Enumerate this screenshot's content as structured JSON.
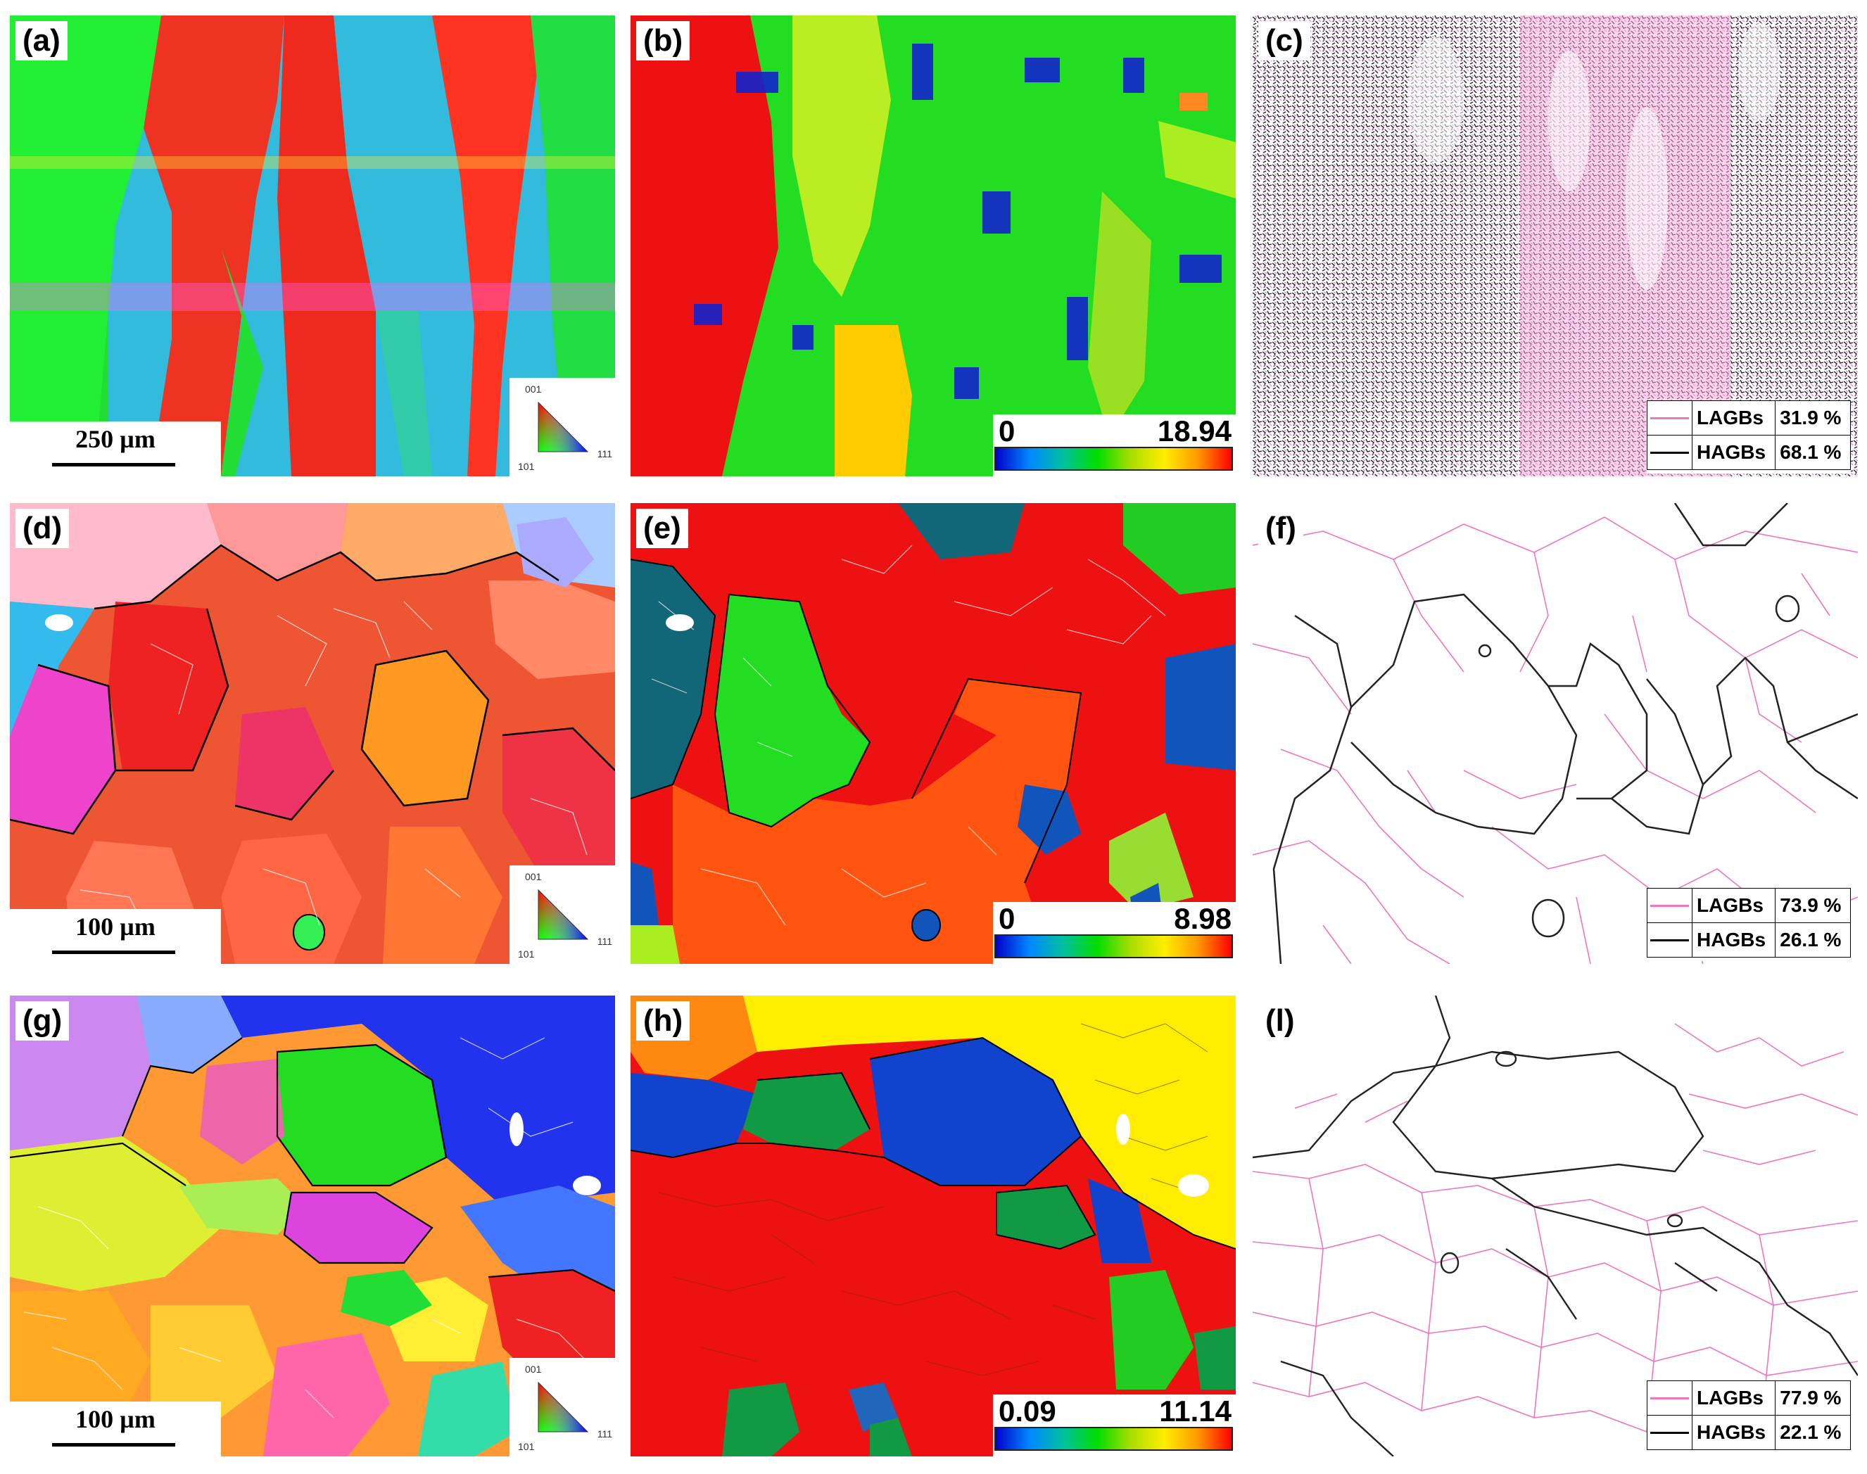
{
  "figure": {
    "panels": [
      {
        "id": "a",
        "label": "(a)",
        "type": "ipf",
        "scale_bar": "250 µm"
      },
      {
        "id": "b",
        "label": "(b)",
        "type": "kam",
        "colorbar": {
          "min": "0",
          "max": "18.94"
        }
      },
      {
        "id": "c",
        "label": "(c)",
        "type": "boundary",
        "legend": [
          {
            "name": "LAGBs",
            "value": "31.9 %",
            "color": "#ee77bb"
          },
          {
            "name": "HAGBs",
            "value": "68.1 %",
            "color": "#000000"
          }
        ]
      },
      {
        "id": "d",
        "label": "(d)",
        "type": "ipf",
        "scale_bar": "100 µm"
      },
      {
        "id": "e",
        "label": "(e)",
        "type": "kam",
        "colorbar": {
          "min": "0",
          "max": "8.98"
        }
      },
      {
        "id": "f",
        "label": "(f)",
        "type": "boundary",
        "legend": [
          {
            "name": "LAGBs",
            "value": "73.9 %",
            "color": "#ee77bb"
          },
          {
            "name": "HAGBs",
            "value": "26.1 %",
            "color": "#000000"
          }
        ]
      },
      {
        "id": "g",
        "label": "(g)",
        "type": "ipf",
        "scale_bar": "100 µm"
      },
      {
        "id": "h",
        "label": "(h)",
        "type": "kam",
        "colorbar": {
          "min": "0.09",
          "max": "11.14"
        }
      },
      {
        "id": "i",
        "label": "(l)",
        "type": "boundary",
        "legend": [
          {
            "name": "LAGBs",
            "value": "77.9 %",
            "color": "#ee77bb"
          },
          {
            "name": "HAGBs",
            "value": "22.1 %",
            "color": "#000000"
          }
        ]
      }
    ],
    "ipf_key": {
      "top": "001",
      "left": "101",
      "right": "111"
    }
  }
}
